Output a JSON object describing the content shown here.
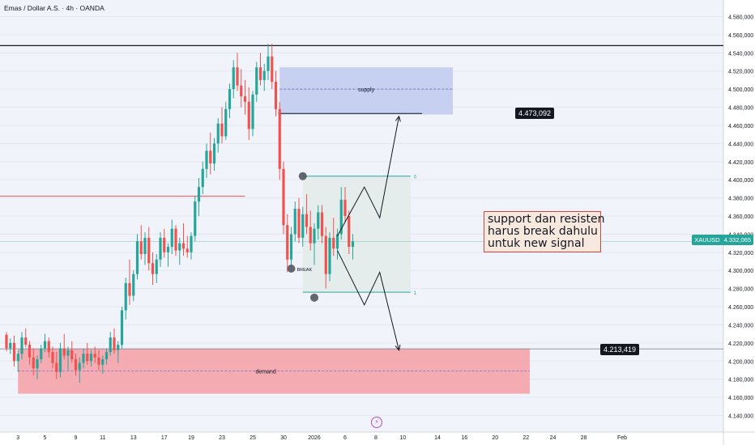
{
  "header": {
    "title": "Emas / Dollar A.S. · 4h · OANDA"
  },
  "note": {
    "lines": [
      "support dan resisten",
      "harus break dahulu",
      "untuk new signal"
    ]
  },
  "tags": {
    "upper_target": "4.473,092",
    "lower_target": "4.213,419",
    "symbol": "XAUUSD",
    "last_price": "4.332,065"
  },
  "annotations": {
    "supply": "supply",
    "demand": "demand",
    "break": "BREAK",
    "fib_top": "0",
    "fib_bottom": "1",
    "fib_mid": "0.5"
  },
  "colors": {
    "up": "#26a69a",
    "down": "#ef5350",
    "supply_fill": "#c5cdf1",
    "demand_fill": "#f3a6ad",
    "box_fill": "#e3ecea",
    "accent_purple": "#b44cc9"
  },
  "chart_data": {
    "type": "candlestick",
    "title": "Emas / Dollar A.S. · 4h · OANDA",
    "y_axis": {
      "ylim": [
        4130,
        4590
      ],
      "ticks": [
        "4.580,000",
        "4.560,000",
        "4.540,000",
        "4.520,000",
        "4.500,000",
        "4.480,000",
        "4.460,000",
        "4.440,000",
        "4.420,000",
        "4.400,000",
        "4.380,000",
        "4.360,000",
        "4.340,000",
        "4.320,000",
        "4.300,000",
        "4.280,000",
        "4.260,000",
        "4.240,000",
        "4.220,000",
        "4.200,000",
        "4.180,000",
        "4.160,000",
        "4.140,000"
      ],
      "tick_values": [
        4580,
        4560,
        4540,
        4520,
        4500,
        4480,
        4460,
        4440,
        4420,
        4400,
        4380,
        4360,
        4340,
        4320,
        4300,
        4280,
        4260,
        4240,
        4220,
        4200,
        4180,
        4160,
        4140
      ]
    },
    "x_axis": {
      "labels": [
        "3",
        "5",
        "9",
        "11",
        "13",
        "17",
        "19",
        "23",
        "25",
        "30",
        "2026",
        "6",
        "8",
        "10",
        "14",
        "16",
        "20",
        "22",
        "24",
        "28",
        "Feb"
      ],
      "index": [
        3,
        10,
        18,
        25,
        33,
        41,
        48,
        56,
        64,
        72,
        80,
        88,
        96,
        103,
        112,
        119,
        127,
        135,
        142,
        150,
        160
      ]
    },
    "candles": [
      [
        4229,
        4232,
        4211,
        4214
      ],
      [
        4214,
        4225,
        4208,
        4220
      ],
      [
        4220,
        4228,
        4194,
        4200
      ],
      [
        4200,
        4212,
        4188,
        4208
      ],
      [
        4208,
        4232,
        4202,
        4226
      ],
      [
        4226,
        4236,
        4215,
        4218
      ],
      [
        4218,
        4222,
        4196,
        4204
      ],
      [
        4204,
        4214,
        4184,
        4192
      ],
      [
        4192,
        4206,
        4180,
        4202
      ],
      [
        4202,
        4218,
        4198,
        4214
      ],
      [
        4214,
        4230,
        4210,
        4222
      ],
      [
        4222,
        4226,
        4204,
        4210
      ],
      [
        4210,
        4216,
        4192,
        4198
      ],
      [
        4198,
        4210,
        4180,
        4188
      ],
      [
        4188,
        4220,
        4182,
        4214
      ],
      [
        4214,
        4230,
        4202,
        4206
      ],
      [
        4206,
        4216,
        4190,
        4212
      ],
      [
        4212,
        4222,
        4198,
        4202
      ],
      [
        4202,
        4208,
        4184,
        4190
      ],
      [
        4190,
        4204,
        4176,
        4198
      ],
      [
        4198,
        4214,
        4192,
        4208
      ],
      [
        4208,
        4220,
        4196,
        4200
      ],
      [
        4200,
        4212,
        4194,
        4208
      ],
      [
        4208,
        4216,
        4198,
        4204
      ],
      [
        4204,
        4212,
        4190,
        4196
      ],
      [
        4196,
        4206,
        4186,
        4202
      ],
      [
        4202,
        4214,
        4196,
        4210
      ],
      [
        4210,
        4232,
        4206,
        4226
      ],
      [
        4226,
        4236,
        4208,
        4212
      ],
      [
        4212,
        4222,
        4198,
        4218
      ],
      [
        4218,
        4260,
        4214,
        4256
      ],
      [
        4256,
        4292,
        4246,
        4286
      ],
      [
        4286,
        4312,
        4262,
        4272
      ],
      [
        4272,
        4300,
        4266,
        4296
      ],
      [
        4296,
        4340,
        4290,
        4332
      ],
      [
        4332,
        4350,
        4312,
        4318
      ],
      [
        4318,
        4342,
        4306,
        4336
      ],
      [
        4336,
        4348,
        4300,
        4308
      ],
      [
        4308,
        4320,
        4284,
        4296
      ],
      [
        4296,
        4318,
        4286,
        4312
      ],
      [
        4312,
        4342,
        4304,
        4336
      ],
      [
        4336,
        4346,
        4314,
        4320
      ],
      [
        4320,
        4330,
        4304,
        4326
      ],
      [
        4326,
        4356,
        4318,
        4346
      ],
      [
        4346,
        4350,
        4316,
        4322
      ],
      [
        4322,
        4336,
        4306,
        4330
      ],
      [
        4330,
        4352,
        4316,
        4324
      ],
      [
        4324,
        4338,
        4314,
        4320
      ],
      [
        4320,
        4342,
        4312,
        4338
      ],
      [
        4338,
        4382,
        4332,
        4376
      ],
      [
        4376,
        4402,
        4360,
        4392
      ],
      [
        4392,
        4420,
        4384,
        4412
      ],
      [
        4412,
        4440,
        4402,
        4432
      ],
      [
        4432,
        4452,
        4406,
        4418
      ],
      [
        4418,
        4446,
        4410,
        4440
      ],
      [
        4440,
        4468,
        4430,
        4462
      ],
      [
        4462,
        4480,
        4440,
        4448
      ],
      [
        4448,
        4486,
        4444,
        4478
      ],
      [
        4478,
        4506,
        4468,
        4500
      ],
      [
        4500,
        4532,
        4490,
        4524
      ],
      [
        4524,
        4540,
        4498,
        4504
      ],
      [
        4504,
        4522,
        4480,
        4492
      ],
      [
        4492,
        4510,
        4472,
        4486
      ],
      [
        4486,
        4502,
        4444,
        4456
      ],
      [
        4456,
        4498,
        4448,
        4494
      ],
      [
        4494,
        4530,
        4486,
        4524
      ],
      [
        4524,
        4540,
        4504,
        4510
      ],
      [
        4510,
        4528,
        4498,
        4520
      ],
      [
        4520,
        4550,
        4510,
        4536
      ],
      [
        4536,
        4550,
        4500,
        4508
      ],
      [
        4508,
        4520,
        4470,
        4478
      ],
      [
        4478,
        4486,
        4400,
        4412
      ],
      [
        4412,
        4420,
        4340,
        4350
      ],
      [
        4350,
        4362,
        4298,
        4312
      ],
      [
        4312,
        4348,
        4304,
        4340
      ],
      [
        4340,
        4376,
        4332,
        4368
      ],
      [
        4368,
        4380,
        4330,
        4336
      ],
      [
        4336,
        4370,
        4326,
        4362
      ],
      [
        4362,
        4384,
        4340,
        4348
      ],
      [
        4348,
        4366,
        4322,
        4330
      ],
      [
        4330,
        4352,
        4306,
        4346
      ],
      [
        4346,
        4372,
        4334,
        4364
      ],
      [
        4364,
        4372,
        4330,
        4338
      ],
      [
        4338,
        4348,
        4280,
        4296
      ],
      [
        4296,
        4342,
        4288,
        4336
      ],
      [
        4336,
        4358,
        4316,
        4324
      ],
      [
        4324,
        4346,
        4312,
        4340
      ],
      [
        4340,
        4392,
        4334,
        4378
      ],
      [
        4378,
        4392,
        4354,
        4360
      ],
      [
        4360,
        4366,
        4318,
        4326
      ],
      [
        4326,
        4340,
        4312,
        4332
      ]
    ],
    "zones": [
      {
        "label": "supply",
        "y_top": 4524,
        "y_bottom": 4472,
        "dashed_mid": 4500,
        "date_from_index": 71,
        "date_to_index": 116
      },
      {
        "label": "demand",
        "y_top": 4214,
        "y_bottom": 4164,
        "dashed_mid": 4189,
        "date_from_index": 3,
        "date_to_index": 136
      }
    ],
    "fib_box": {
      "y0": 4404,
      "y1": 4276,
      "date_from_index": 77,
      "date_to_index": 105
    },
    "levels": [
      {
        "value": 4548,
        "label": ""
      },
      {
        "value": 4473.092,
        "label": "4.473,092"
      },
      {
        "value": 4213.419,
        "label": "4.213,419"
      },
      {
        "value": 4332.065,
        "label": "4.332,065"
      },
      {
        "value": 4382,
        "label": ""
      }
    ],
    "projection_up": [
      [
        86,
        4338
      ],
      [
        93,
        4392
      ],
      [
        97,
        4358
      ],
      [
        102,
        4470
      ]
    ],
    "projection_down": [
      [
        86,
        4322
      ],
      [
        93,
        4262
      ],
      [
        97,
        4298
      ],
      [
        102,
        4212
      ]
    ],
    "markers": [
      {
        "x": 77,
        "y": 4404,
        "label": ""
      },
      {
        "x": 74,
        "y": 4302,
        "label": "BREAK"
      },
      {
        "x": 80,
        "y": 4270,
        "label": ""
      }
    ]
  }
}
